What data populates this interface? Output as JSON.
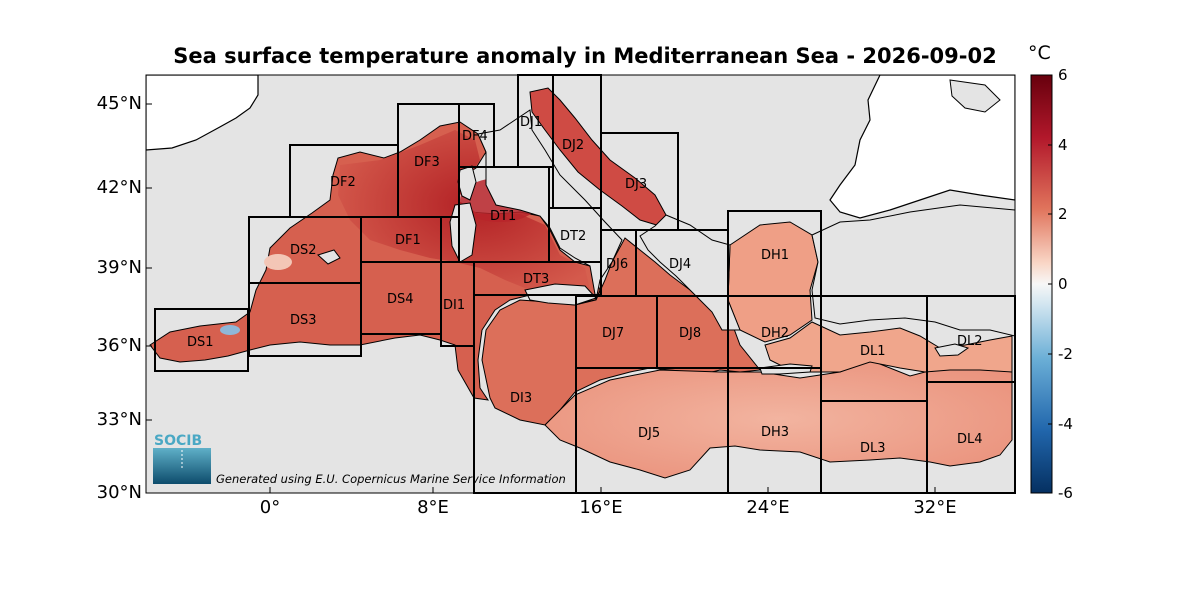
{
  "title": "Sea surface temperature anomaly in Mediterranean Sea - 2026-09-02",
  "colorbar": {
    "unit": "°C",
    "ticks": [
      "6",
      "4",
      "2",
      "0",
      "-2",
      "-4",
      "-6"
    ],
    "range": [
      -6,
      6
    ]
  },
  "axes": {
    "lat_ticks": [
      "45°N",
      "42°N",
      "39°N",
      "36°N",
      "33°N",
      "30°N"
    ],
    "lon_ticks": [
      "0°",
      "8°E",
      "16°E",
      "24°E",
      "32°E"
    ]
  },
  "credit": "Generated using E.U. Copernicus Marine Service Information",
  "logo_text": "SOCIB",
  "colors": {
    "sea_warm": "#d4564a",
    "sea_hot": "#b9262a",
    "sea_mild": "#f0a890",
    "land_inside": "#e4e4e4",
    "land_outside": "#ffffff",
    "box": "#000000"
  },
  "regions": [
    "DS1",
    "DS2",
    "DS3",
    "DS4",
    "DF1",
    "DF2",
    "DF3",
    "DF4",
    "DI1",
    "DI3",
    "DT1",
    "DT2",
    "DT3",
    "DJ1",
    "DJ2",
    "DJ3",
    "DJ4",
    "DJ5",
    "DJ6",
    "DJ7",
    "DJ8",
    "DH1",
    "DH2",
    "DH3",
    "DL1",
    "DL2",
    "DL3",
    "DL4"
  ]
}
